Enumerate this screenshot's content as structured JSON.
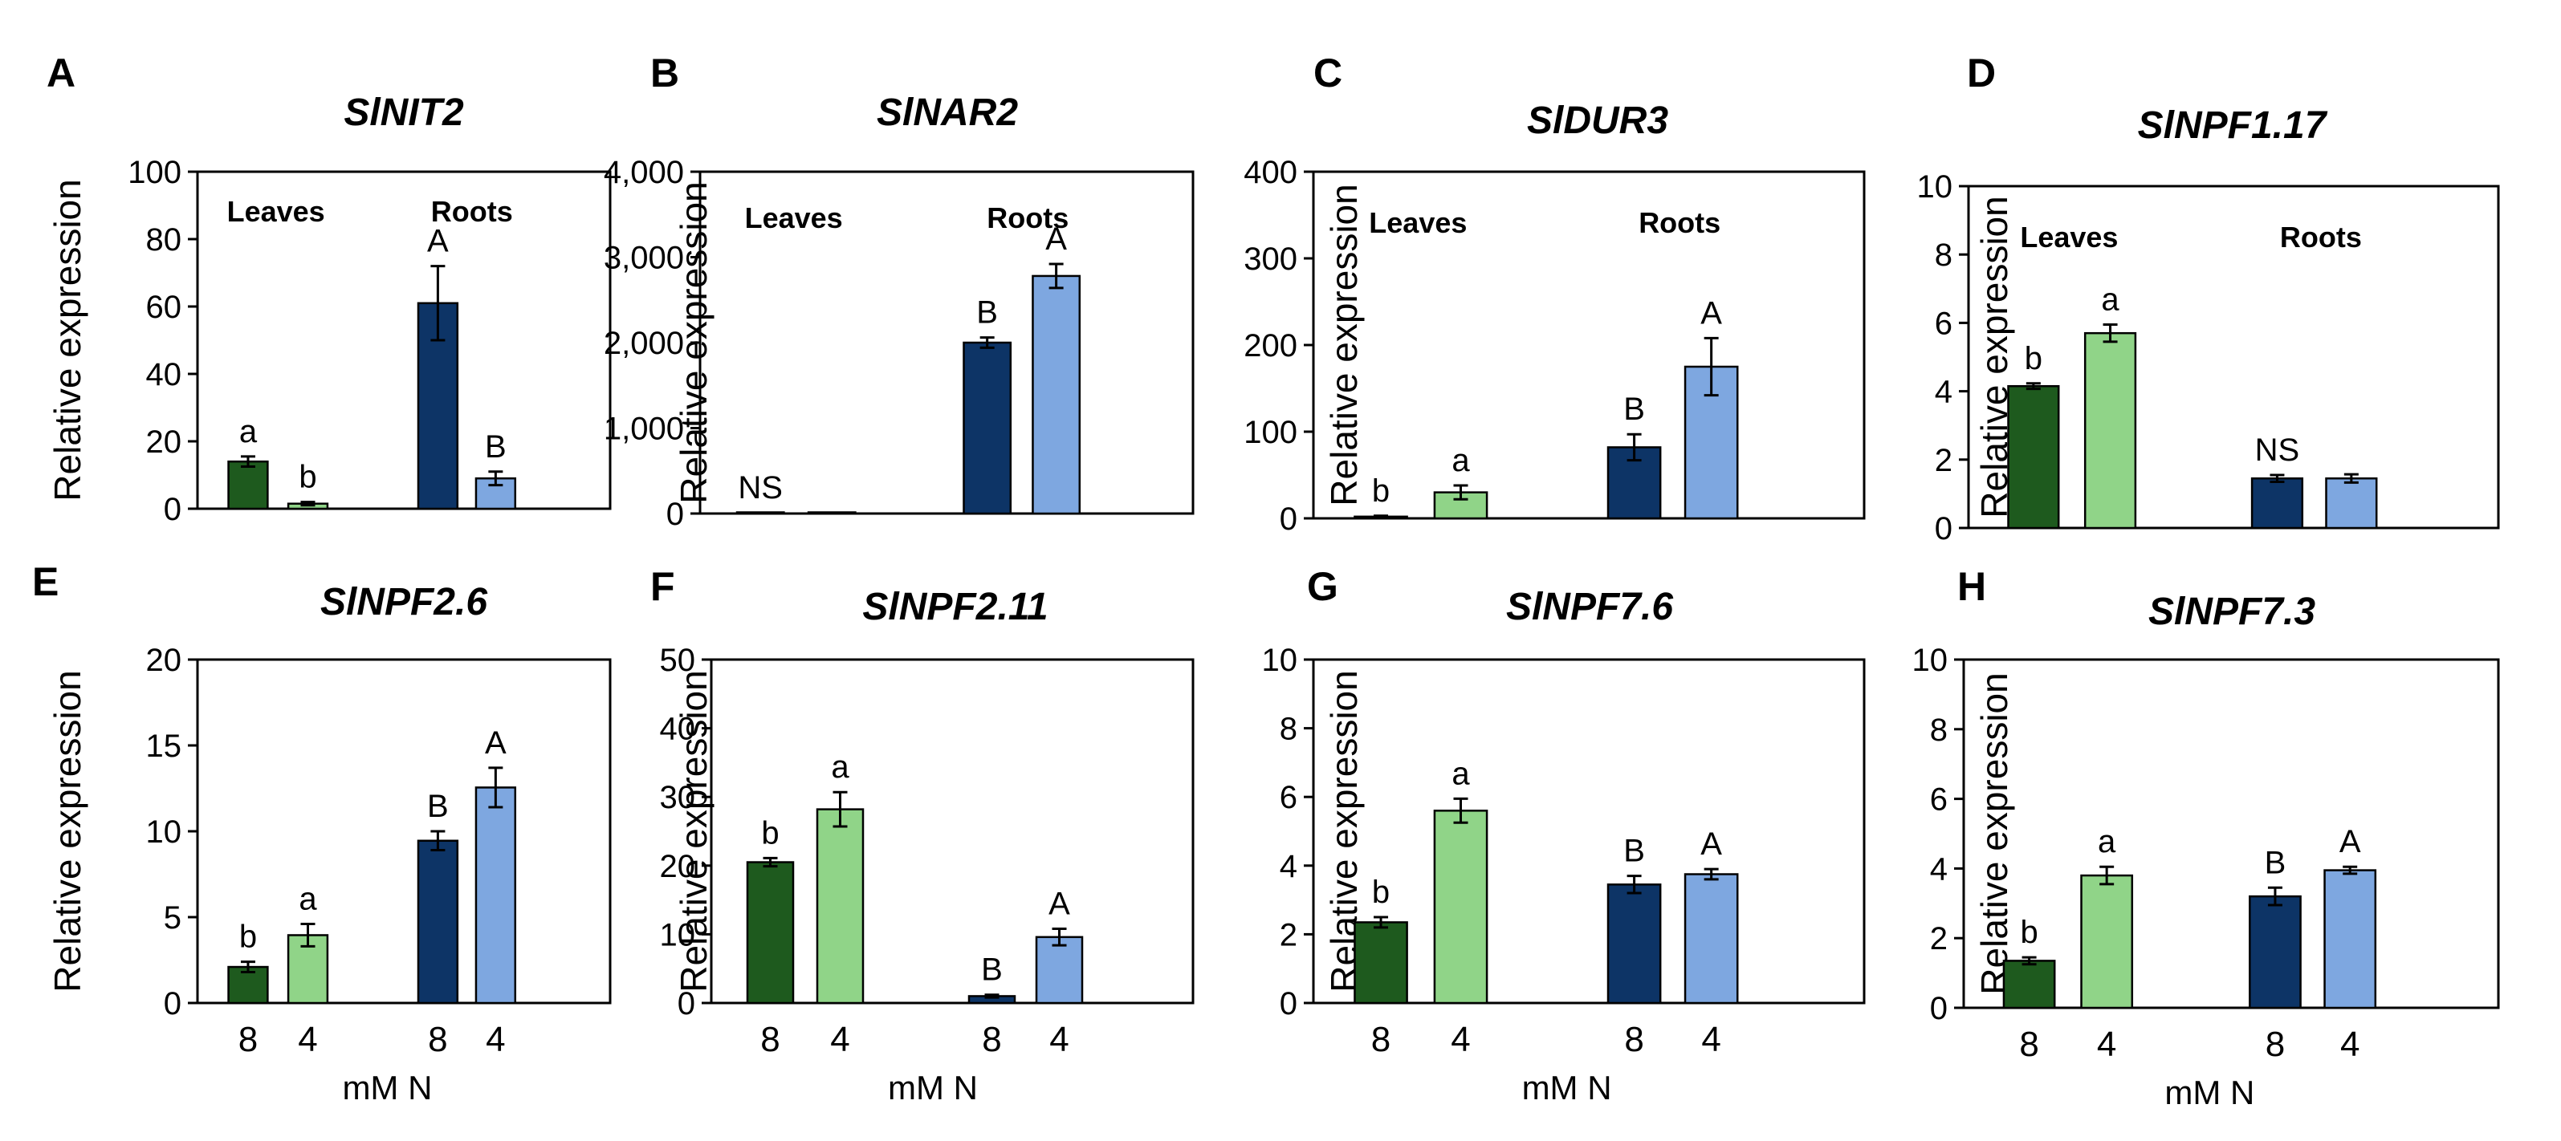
{
  "figure": {
    "ylabel": "Relative expression",
    "xlabel": "mM N",
    "tissues": [
      "Leaves",
      "Roots"
    ],
    "categories": [
      "8",
      "4",
      "8",
      "4"
    ]
  },
  "colors": {
    "leaves_8": "#1e5a1e",
    "leaves_4": "#90d488",
    "roots_8": "#0d3466",
    "roots_4": "#7ea7e0"
  },
  "chart_data": [
    {
      "panel": "A",
      "type": "bar",
      "title": "SlNIT2",
      "ylim": [
        0,
        100
      ],
      "yticks": [
        "0",
        "20",
        "40",
        "60",
        "80",
        "100"
      ],
      "ytick_values": [
        0,
        20,
        40,
        60,
        80,
        100
      ],
      "series_groups": [
        "Leaves 8",
        "Leaves 4",
        "Roots 8",
        "Roots 4"
      ],
      "values": [
        14,
        1.5,
        61,
        9
      ],
      "errors": [
        1.5,
        0.5,
        11,
        2
      ],
      "letters": [
        "a",
        "b",
        "A",
        "B"
      ]
    },
    {
      "panel": "B",
      "type": "bar",
      "title": "SlNAR2",
      "ylim": [
        0,
        4000
      ],
      "yticks": [
        "0",
        "1,000",
        "2,000",
        "3,000",
        "4,000"
      ],
      "ytick_values": [
        0,
        1000,
        2000,
        3000,
        4000
      ],
      "series_groups": [
        "Leaves 8",
        "Leaves 4",
        "Roots 8",
        "Roots 4"
      ],
      "values": [
        10,
        10,
        2000,
        2780
      ],
      "errors": [
        0,
        0,
        60,
        140
      ],
      "letters": [
        "NS",
        "",
        "B",
        "A"
      ]
    },
    {
      "panel": "C",
      "type": "bar",
      "title": "SlDUR3",
      "ylim": [
        0,
        400
      ],
      "yticks": [
        "0",
        "100",
        "200",
        "300",
        "400"
      ],
      "ytick_values": [
        0,
        100,
        200,
        300,
        400
      ],
      "series_groups": [
        "Leaves 8",
        "Leaves 4",
        "Roots 8",
        "Roots 4"
      ],
      "values": [
        2,
        30,
        82,
        175
      ],
      "errors": [
        1,
        8,
        15,
        33
      ],
      "letters": [
        "b",
        "a",
        "B",
        "A"
      ]
    },
    {
      "panel": "D",
      "type": "bar",
      "title": "SlNPF1.17",
      "ylim": [
        0,
        10
      ],
      "yticks": [
        "0",
        "2",
        "4",
        "6",
        "8",
        "10"
      ],
      "ytick_values": [
        0,
        2,
        4,
        6,
        8,
        10
      ],
      "series_groups": [
        "Leaves 8",
        "Leaves 4",
        "Roots 8",
        "Roots 4"
      ],
      "values": [
        4.15,
        5.7,
        1.45,
        1.45
      ],
      "errors": [
        0.08,
        0.25,
        0.1,
        0.12
      ],
      "letters": [
        "b",
        "a",
        "NS",
        ""
      ]
    },
    {
      "panel": "E",
      "type": "bar",
      "title": "SlNPF2.6",
      "ylim": [
        0,
        20
      ],
      "yticks": [
        "0",
        "5",
        "10",
        "15",
        "20"
      ],
      "ytick_values": [
        0,
        5,
        10,
        15,
        20
      ],
      "series_groups": [
        "Leaves 8",
        "Leaves 4",
        "Roots 8",
        "Roots 4"
      ],
      "values": [
        2.1,
        3.95,
        9.45,
        12.55
      ],
      "errors": [
        0.3,
        0.65,
        0.55,
        1.15
      ],
      "letters": [
        "b",
        "a",
        "B",
        "A"
      ]
    },
    {
      "panel": "F",
      "type": "bar",
      "title": "SlNPF2.11",
      "ylim": [
        0,
        50
      ],
      "yticks": [
        "0",
        "10",
        "20",
        "30",
        "40",
        "50"
      ],
      "ytick_values": [
        0,
        10,
        20,
        30,
        40,
        50
      ],
      "series_groups": [
        "Leaves 8",
        "Leaves 4",
        "Roots 8",
        "Roots 4"
      ],
      "values": [
        20.5,
        28.2,
        1.0,
        9.6
      ],
      "errors": [
        0.6,
        2.5,
        0.2,
        1.2
      ],
      "letters": [
        "b",
        "a",
        "B",
        "A"
      ]
    },
    {
      "panel": "G",
      "type": "bar",
      "title": "SlNPF7.6",
      "ylim": [
        0,
        10
      ],
      "yticks": [
        "0",
        "2",
        "4",
        "6",
        "8",
        "10"
      ],
      "ytick_values": [
        0,
        2,
        4,
        6,
        8,
        10
      ],
      "series_groups": [
        "Leaves 8",
        "Leaves 4",
        "Roots 8",
        "Roots 4"
      ],
      "values": [
        2.35,
        5.6,
        3.45,
        3.75
      ],
      "errors": [
        0.15,
        0.35,
        0.25,
        0.15
      ],
      "letters": [
        "b",
        "a",
        "B",
        "A"
      ]
    },
    {
      "panel": "H",
      "type": "bar",
      "title": "SlNPF7.3",
      "ylim": [
        0,
        10
      ],
      "yticks": [
        "0",
        "2",
        "4",
        "6",
        "8",
        "10"
      ],
      "ytick_values": [
        0,
        2,
        4,
        6,
        8,
        10
      ],
      "series_groups": [
        "Leaves 8",
        "Leaves 4",
        "Roots 8",
        "Roots 4"
      ],
      "values": [
        1.35,
        3.8,
        3.2,
        3.95
      ],
      "errors": [
        0.1,
        0.25,
        0.25,
        0.1
      ],
      "letters": [
        "b",
        "a",
        "B",
        "A"
      ]
    }
  ]
}
